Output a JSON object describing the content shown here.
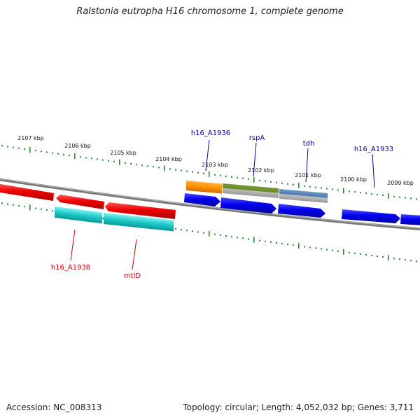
{
  "title": "Ralstonia eutropha H16 chromosome 1, complete genome",
  "footer": {
    "accession": "Accession: NC_008313",
    "topology": "Topology: circular; Length: 4,052,032 bp; Genes: 3,711"
  },
  "ruler": {
    "tick_color": "#2e8b2e",
    "labels": [
      {
        "text": "2107 kbp"
      },
      {
        "text": "2106 kbp"
      },
      {
        "text": "2105 kbp"
      },
      {
        "text": "2104 kbp"
      },
      {
        "text": "2103 kbp"
      },
      {
        "text": "2102 kbp"
      },
      {
        "text": "2101 kbp"
      },
      {
        "text": "2100 kbp"
      },
      {
        "text": "2099 kbp"
      }
    ]
  },
  "strands": {
    "forward_color": "#0000ff",
    "reverse_color": "#ff0000"
  },
  "gene_labels": {
    "top": [
      {
        "text": "h16_A1936",
        "color": "#0000aa"
      },
      {
        "text": "rspA",
        "color": "#0000aa"
      },
      {
        "text": "tdh",
        "color": "#0000aa"
      },
      {
        "text": "h16_A1933",
        "color": "#0000aa"
      }
    ],
    "bottom": [
      {
        "text": "h16_A1938",
        "color": "#cc0000"
      },
      {
        "text": "mtlD",
        "color": "#cc0000"
      }
    ]
  }
}
